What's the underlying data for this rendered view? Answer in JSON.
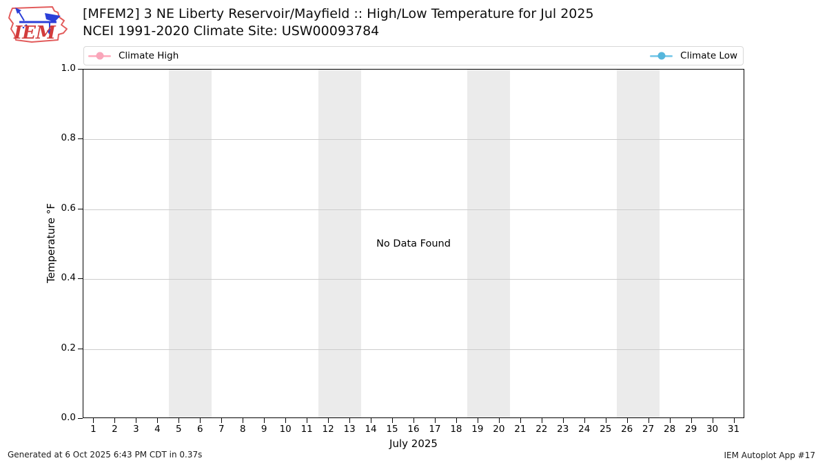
{
  "header": {
    "title": "[MFEM2] 3 NE Liberty Reservoir/Mayfield :: High/Low Temperature for Jul 2025",
    "subtitle": "NCEI 1991-2020 Climate Site: USW00093784",
    "logo_text": "IEM"
  },
  "legend": {
    "items": [
      {
        "label": "Climate High",
        "line_color": "#ffb6c6",
        "marker_color": "#f9a6ba"
      },
      {
        "label": "Climate Low",
        "line_color": "#85cdeb",
        "marker_color": "#55b6dc"
      }
    ]
  },
  "chart_data": {
    "type": "line",
    "title": "[MFEM2] 3 NE Liberty Reservoir/Mayfield :: High/Low Temperature for Jul 2025",
    "subtitle": "NCEI 1991-2020 Climate Site: USW00093784",
    "xlabel": "July 2025",
    "ylabel": "Temperature °F",
    "xlim": [
      0.5,
      31.5
    ],
    "ylim": [
      0.0,
      1.0
    ],
    "x_ticks": [
      1,
      2,
      3,
      4,
      5,
      6,
      7,
      8,
      9,
      10,
      11,
      12,
      13,
      14,
      15,
      16,
      17,
      18,
      19,
      20,
      21,
      22,
      23,
      24,
      25,
      26,
      27,
      28,
      29,
      30,
      31
    ],
    "y_ticks": [
      0.0,
      0.2,
      0.4,
      0.6,
      0.8,
      1.0
    ],
    "grid": "horizontal",
    "legend_position": "top-expand",
    "weekend_bands": [
      [
        4.5,
        6.5
      ],
      [
        11.5,
        13.5
      ],
      [
        18.5,
        20.5
      ],
      [
        25.5,
        27.5
      ]
    ],
    "series": [
      {
        "name": "Climate High",
        "color": "#ffb6c6",
        "marker": "circle",
        "values": []
      },
      {
        "name": "Climate Low",
        "color": "#85cdeb",
        "marker": "circle",
        "values": []
      }
    ],
    "no_data_message": "No Data Found",
    "colors": {
      "weekend_band": "#ebebeb",
      "gridline": "#cccccc",
      "spine": "#000000"
    }
  },
  "footer": {
    "generated": "Generated at 6 Oct 2025 6:43 PM CDT in 0.37s",
    "app": "IEM Autoplot App #17"
  }
}
